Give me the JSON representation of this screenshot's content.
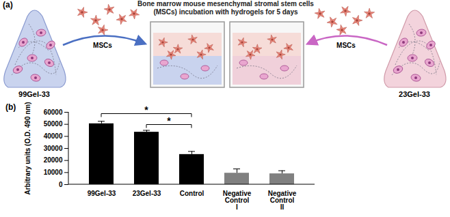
{
  "diagram": {
    "panel_labels": [
      "(a)",
      "(b)"
    ],
    "title": "Bone marrow mouse mesenchymal stromal stem cells (MSCs) incubation with hydrogels for 5 days",
    "left_hydrogel": "99Gel-33",
    "right_hydrogel": "23Gel-33",
    "left_arrow_label": "MSCs",
    "right_arrow_label": "MSCs"
  },
  "chart_data": {
    "type": "bar",
    "categories": [
      "99Gel-33",
      "23Gel-33",
      "Control",
      "Negative Control I",
      "Negative Control II"
    ],
    "values": [
      50500,
      43500,
      25000,
      9500,
      9000
    ],
    "errors": [
      2000,
      1500,
      2500,
      3500,
      2500
    ],
    "colors": [
      "#000000",
      "#000000",
      "#000000",
      "#808080",
      "#808080"
    ],
    "ylabel": "Arbitrary units (O.D. 490 nm)",
    "ylim": [
      0,
      60000
    ],
    "yticks": [
      0,
      10000,
      20000,
      30000,
      40000,
      50000,
      60000
    ],
    "grid": false,
    "annotations": [
      {
        "from": "99Gel-33",
        "to": "Control",
        "text": "*"
      },
      {
        "from": "23Gel-33",
        "to": "Control",
        "text": "*"
      }
    ]
  }
}
